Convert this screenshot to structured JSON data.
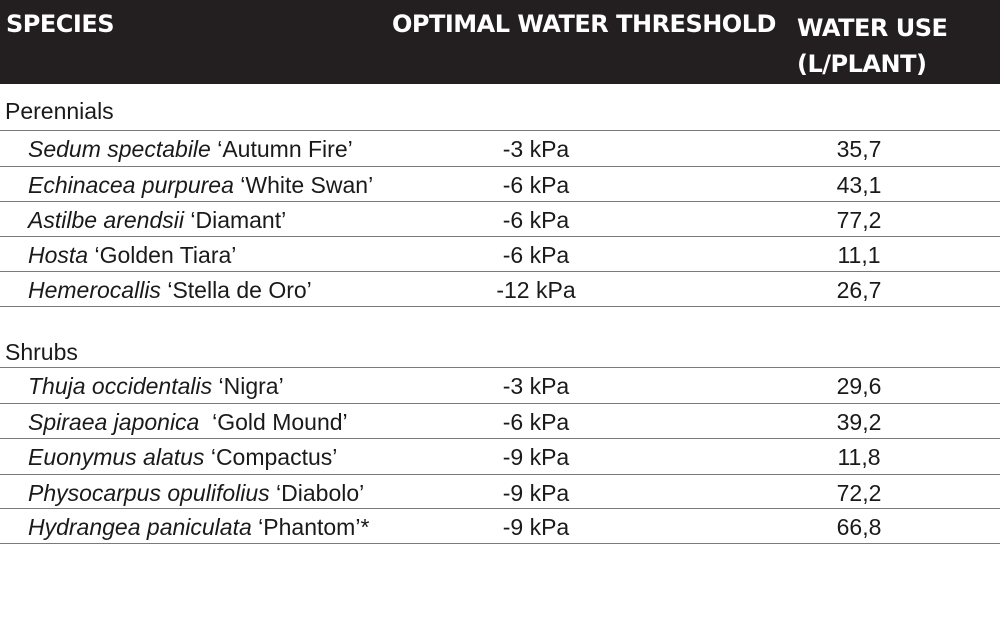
{
  "header": {
    "species": "SPECIES",
    "threshold": "OPTIMAL WATER THRESHOLD",
    "water_use_line1": "WATER USE",
    "water_use_line2": "(L/PLANT)"
  },
  "sections": [
    {
      "title": "Perennials",
      "rows": [
        {
          "genus": "Sedum spectabile",
          "cultivar": " ‘Autumn Fire’",
          "threshold": "-3 kPa",
          "water_use": "35,7"
        },
        {
          "genus": "Echinacea purpurea",
          "cultivar": " ‘White Swan’",
          "threshold": "-6 kPa",
          "water_use": "43,1"
        },
        {
          "genus": "Astilbe arendsii",
          "cultivar": " ‘Diamant’",
          "threshold": "-6 kPa",
          "water_use": "77,2"
        },
        {
          "genus": "Hosta",
          "cultivar": " ‘Golden Tiara’",
          "threshold": "-6 kPa",
          "water_use": "11,1"
        },
        {
          "genus": "Hemerocallis",
          "cultivar": " ‘Stella de Oro’",
          "threshold": "-12 kPa",
          "water_use": "26,7"
        }
      ]
    },
    {
      "title": "Shrubs",
      "rows": [
        {
          "genus": "Thuja occidentalis",
          "cultivar": " ‘Nigra’",
          "threshold": "-3 kPa",
          "water_use": "29,6"
        },
        {
          "genus": "Spiraea japonica",
          "cultivar": "  ‘Gold Mound’",
          "threshold": "-6 kPa",
          "water_use": "39,2"
        },
        {
          "genus": "Euonymus alatus",
          "cultivar": " ‘Compactus’",
          "threshold": "-9 kPa",
          "water_use": "11,8"
        },
        {
          "genus": "Physocarpus opulifolius",
          "cultivar": " ‘Diabolo’",
          "threshold": "-9 kPa",
          "water_use": "72,2"
        },
        {
          "genus": "Hydrangea paniculata",
          "cultivar": " ‘Phantom’*",
          "threshold": "-9 kPa",
          "water_use": "66,8"
        }
      ]
    }
  ]
}
